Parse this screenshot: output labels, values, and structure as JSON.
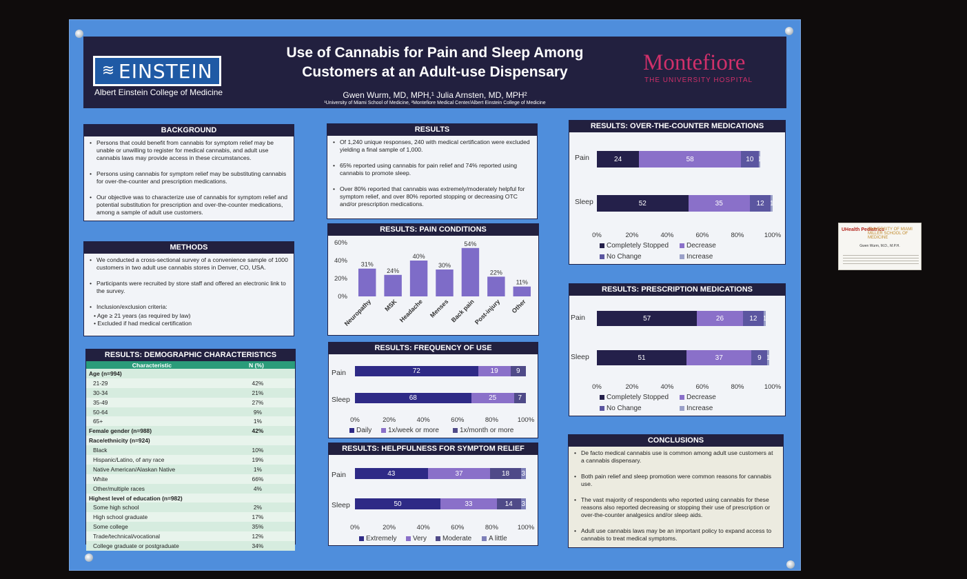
{
  "header": {
    "title_line1": "Use of Cannabis for Pain and Sleep Among",
    "title_line2": "Customers at an Adult-use Dispensary",
    "authors": "Gwen Wurm, MD, MPH,¹ Julia Arnsten, MD, MPH²",
    "affiliations": "¹University of Miami School of Medicine, ²Montefiore Medical Center/Albert Einstein College of Medicine",
    "einstein_logo": "EINSTEIN",
    "einstein_sub": "Albert Einstein College of Medicine",
    "montefiore_logo": "Montefiore",
    "montefiore_sub": "THE UNIVERSITY HOSPITAL"
  },
  "background": {
    "title": "BACKGROUND",
    "bullets": [
      "Persons that could benefit from cannabis for symptom relief may be unable or unwilling to register for medical cannabis, and adult use cannabis laws may provide access in these circumstances.",
      "Persons using cannabis for symptom relief may be substituting cannabis for over-the-counter and prescription medications.",
      "Our objective was to characterize use of cannabis for symptom relief and potential substitution for prescription and over-the-counter medications, among a sample of adult use customers."
    ]
  },
  "methods": {
    "title": "METHODS",
    "bullets": [
      "We conducted a cross-sectional survey of a convenience sample of 1000 customers in two adult use cannabis stores in Denver, CO, USA.",
      "Participants were recruited by store staff and offered an electronic link to the survey.",
      "Inclusion/exclusion criteria:"
    ],
    "sub_bullets": [
      "• Age ≥ 21 years (as required by law)",
      "• Excluded if had medical certification"
    ]
  },
  "demographics": {
    "title": "RESULTS: DEMOGRAPHIC CHARACTERISTICS",
    "col1": "Characteristic",
    "col2": "N (%)",
    "rows": [
      {
        "label": "Age (n=994)",
        "value": "",
        "bold": true
      },
      {
        "label": "21-29",
        "value": "42%"
      },
      {
        "label": "30-34",
        "value": "21%"
      },
      {
        "label": "35-49",
        "value": "27%"
      },
      {
        "label": "50-64",
        "value": "9%"
      },
      {
        "label": "65+",
        "value": "1%"
      },
      {
        "label": "Female gender (n=988)",
        "value": "42%",
        "bold": true
      },
      {
        "label": "Race/ethnicity (n=924)",
        "value": "",
        "bold": true
      },
      {
        "label": "Black",
        "value": "10%"
      },
      {
        "label": "Hispanic/Latino, of any race",
        "value": "19%"
      },
      {
        "label": "Native American/Alaskan Native",
        "value": "1%"
      },
      {
        "label": "White",
        "value": "66%"
      },
      {
        "label": "Other/multiple races",
        "value": "4%"
      },
      {
        "label": "Highest level of education (n=982)",
        "value": "",
        "bold": true
      },
      {
        "label": "Some high school",
        "value": "2%"
      },
      {
        "label": "High school graduate",
        "value": "17%"
      },
      {
        "label": "Some college",
        "value": "35%"
      },
      {
        "label": "Trade/technical/vocational",
        "value": "12%"
      },
      {
        "label": "College graduate or postgraduate",
        "value": "34%"
      }
    ]
  },
  "results": {
    "title": "RESULTS",
    "bullets": [
      "Of 1,240 unique responses, 240 with medical certification were excluded yielding a final sample of 1,000.",
      "65% reported using cannabis for pain relief and  74% reported using cannabis to promote sleep.",
      "Over 80% reported that cannabis was extremely/moderately helpful for symptom relief, and over 80% reported stopping or decreasing OTC and/or prescription medications."
    ]
  },
  "conclusions": {
    "title": "CONCLUSIONS",
    "bullets": [
      "De facto medical cannabis use is common among adult use customers at a cannabis dispensary.",
      "Both pain relief and sleep promotion were common reasons for cannabis use.",
      "The vast majority of respondents who reported using cannabis for these reasons also reported decreasing or stopping their use of prescription or over-the-counter analgesics and/or sleep aids.",
      "Adult use cannabis laws may be an important policy to expand access to cannabis to treat medical symptoms."
    ]
  },
  "business_card": {
    "brand": "UHealth Pediatrics",
    "brand2": "UNIVERSITY OF MIAMI MILLER SCHOOL OF MEDICINE",
    "name": "Gwen Wurm, M.D., M.P.H."
  },
  "colors": {
    "dark_navy": "#22203f",
    "poster_blue": "#4f8edc",
    "table_green": "#2a9c7a",
    "montefiore_pink": "#d0306a"
  },
  "chart_data": [
    {
      "id": "pain_conditions",
      "type": "bar",
      "title": "RESULTS: PAIN CONDITIONS",
      "categories": [
        "Neuropathy",
        "MSK",
        "Headache",
        "Menses",
        "Back pain",
        "Post-injury",
        "Other"
      ],
      "values": [
        31,
        24,
        40,
        30,
        54,
        22,
        11
      ],
      "value_labels": [
        "31%",
        "24%",
        "40%",
        "30%",
        "54%",
        "22%",
        "11%"
      ],
      "yticks": [
        "0%",
        "20%",
        "40%",
        "60%"
      ],
      "ylim": [
        0,
        60
      ],
      "color": "#7e6cc8"
    },
    {
      "id": "frequency",
      "type": "bar",
      "orientation": "horizontal-stacked",
      "title": "RESULTS: FREQUENCY OF USE",
      "categories": [
        "Pain",
        "Sleep"
      ],
      "series": [
        {
          "name": "Daily",
          "values": [
            72,
            68
          ],
          "color": "#2e2a86"
        },
        {
          "name": "1x/week or more",
          "values": [
            19,
            25
          ],
          "color": "#8a70c9"
        },
        {
          "name": "1x/month or more",
          "values": [
            9,
            7
          ],
          "color": "#4f4a88"
        }
      ],
      "xticks": [
        "0%",
        "20%",
        "40%",
        "60%",
        "80%",
        "100%"
      ]
    },
    {
      "id": "helpfulness",
      "type": "bar",
      "orientation": "horizontal-stacked",
      "title": "RESULTS: HELPFULNESS FOR SYMPTOM RELIEF",
      "categories": [
        "Pain",
        "Sleep"
      ],
      "series": [
        {
          "name": "Extremely",
          "values": [
            43,
            50
          ],
          "color": "#2e2a86"
        },
        {
          "name": "Very",
          "values": [
            37,
            33
          ],
          "color": "#8a70c9"
        },
        {
          "name": "Moderate",
          "values": [
            18,
            14
          ],
          "color": "#4f4a88"
        },
        {
          "name": "A little",
          "values": [
            3,
            3
          ],
          "color": "#7d7fb8"
        }
      ],
      "xticks": [
        "0%",
        "20%",
        "40%",
        "60%",
        "80%",
        "100%"
      ]
    },
    {
      "id": "otc",
      "type": "bar",
      "orientation": "horizontal-stacked",
      "title": "RESULTS: OVER-THE-COUNTER MEDICATIONS",
      "categories": [
        "Pain",
        "Sleep"
      ],
      "series": [
        {
          "name": "Completely Stopped",
          "values": [
            24,
            52
          ],
          "color": "#24204a"
        },
        {
          "name": "Decrease",
          "values": [
            58,
            35
          ],
          "color": "#8a70c9"
        },
        {
          "name": "No Change",
          "values": [
            10,
            12
          ],
          "color": "#5b56a0"
        },
        {
          "name": "Increase",
          "values": [
            1,
            1
          ],
          "color": "#9aa0c8"
        }
      ],
      "xticks": [
        "0%",
        "20%",
        "40%",
        "60%",
        "80%",
        "100%"
      ]
    },
    {
      "id": "rx",
      "type": "bar",
      "orientation": "horizontal-stacked",
      "title": "RESULTS: PRESCRIPTION MEDICATIONS",
      "categories": [
        "Pain",
        "Sleep"
      ],
      "series": [
        {
          "name": "Completely Stopped",
          "values": [
            57,
            51
          ],
          "color": "#24204a"
        },
        {
          "name": "Decrease",
          "values": [
            26,
            37
          ],
          "color": "#8a70c9"
        },
        {
          "name": "No Change",
          "values": [
            12,
            9
          ],
          "color": "#5b56a0"
        },
        {
          "name": "Increase",
          "values": [
            1,
            1
          ],
          "color": "#9aa0c8"
        }
      ],
      "xticks": [
        "0%",
        "20%",
        "40%",
        "60%",
        "80%",
        "100%"
      ]
    }
  ]
}
